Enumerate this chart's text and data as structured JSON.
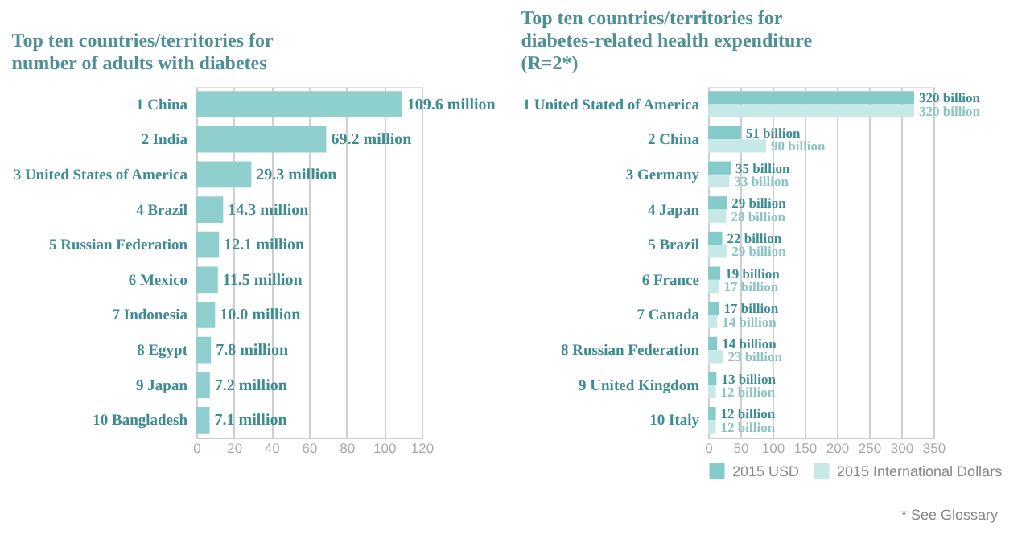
{
  "chart_data": [
    {
      "type": "bar",
      "orientation": "horizontal",
      "title": "Top ten countries/territories for number of adults with diabetes",
      "categories": [
        "1 China",
        "2 India",
        "3 United States of America",
        "4 Brazil",
        "5 Russian Federation",
        "6 Mexico",
        "7 Indonesia",
        "8 Egypt",
        "9 Japan",
        "10 Bangladesh"
      ],
      "series": [
        {
          "color": "#8fd0cf",
          "values": [
            109.6,
            69.2,
            29.3,
            14.3,
            12.1,
            11.5,
            10.0,
            7.8,
            7.2,
            7.1
          ],
          "value_labels": [
            "109.6 million",
            "69.2 million",
            "29.3 million",
            "14.3 million",
            "12.1 million",
            "11.5 million",
            "10.0 million",
            "7.8 million",
            "7.2 million",
            "7.1 million"
          ]
        }
      ],
      "xlim": [
        0,
        120
      ],
      "xticks": [
        0,
        20,
        40,
        60,
        80,
        100,
        120
      ],
      "grid": "x",
      "legend": false
    },
    {
      "type": "bar",
      "orientation": "horizontal",
      "title": "Top ten countries/territories for diabetes-related health expenditure (R=2*)",
      "categories": [
        "1 United Stated of America",
        "2 China",
        "3 Germany",
        "4 Japan",
        "5 Brazil",
        "6 France",
        "7 Canada",
        "8 Russian Federation",
        "9 United Kingdom",
        "10 Italy"
      ],
      "series": [
        {
          "name": "2015 USD",
          "color": "#84cbc9",
          "values": [
            320,
            51,
            35,
            29,
            22,
            19,
            17,
            14,
            13,
            12
          ],
          "value_labels": [
            "320 billion",
            "51 billion",
            "35 billion",
            "29 billion",
            "22 billion",
            "19 billion",
            "17 billion",
            "14 billion",
            "13 billion",
            "12 billion"
          ]
        },
        {
          "name": "2015 International Dollars",
          "color": "#c6e9e7",
          "values": [
            320,
            90,
            33,
            28,
            29,
            17,
            14,
            23,
            12,
            12
          ],
          "value_labels": [
            "320 billion",
            "90 billion",
            "33 billion",
            "28 billion",
            "29 billion",
            "17 billion",
            "14 billion",
            "23 billion",
            "12 billion",
            "12 billion"
          ]
        }
      ],
      "xlim": [
        0,
        350
      ],
      "xticks": [
        0,
        50,
        100,
        150,
        200,
        250,
        300,
        350
      ],
      "grid": "x",
      "legend": "bottom",
      "annotations": [
        "* See Glossary"
      ]
    }
  ]
}
